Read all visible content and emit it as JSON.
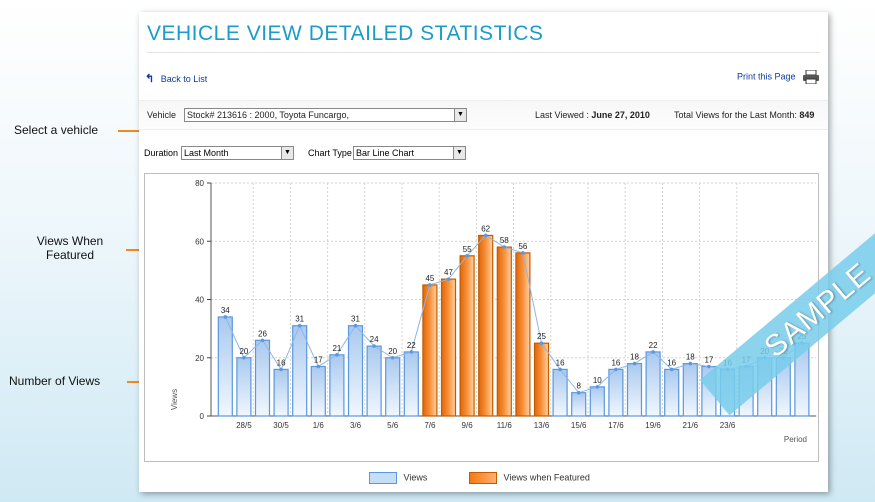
{
  "page": {
    "title": "VEHICLE VIEW DETAILED STATISTICS"
  },
  "nav": {
    "back_label": "Back to List",
    "print_label": "Print this Page"
  },
  "vehicle": {
    "label": "Vehicle",
    "selected": "Stock# 213616 : 2000, Toyota Funcargo,",
    "last_viewed_label": "Last Viewed :",
    "last_viewed_value": "June 27, 2010",
    "total_views_label": "Total Views for the Last Month:",
    "total_views_value": "849"
  },
  "filters": {
    "duration_label": "Duration",
    "duration_value": "Last Month",
    "chart_type_label": "Chart Type",
    "chart_type_value": "Bar Line Chart"
  },
  "annotations": {
    "select_vehicle": "Select a vehicle",
    "views_when_featured": "Views When Featured",
    "number_of_views": "Number of Views"
  },
  "watermark": "SAMPLE",
  "colors": {
    "views": "#c6ddf6",
    "views_border": "#5a98df",
    "featured": "#f47a12",
    "annotation_line": "#f08a20",
    "title": "#1a9cc9"
  },
  "chart_data": {
    "type": "bar",
    "ylabel": "Views",
    "xlabel": "Period",
    "ylim": [
      0,
      80
    ],
    "yticks": [
      0,
      20,
      40,
      60,
      80
    ],
    "grid": true,
    "legend_position": "bottom",
    "series_names": [
      "Views",
      "Views when Featured"
    ],
    "values": [
      34,
      20,
      26,
      16,
      31,
      17,
      21,
      31,
      24,
      20,
      22,
      45,
      47,
      55,
      62,
      58,
      56,
      25,
      16,
      8,
      10,
      16,
      18,
      22,
      16,
      18,
      17,
      16,
      17,
      20,
      20,
      25
    ],
    "featured": [
      false,
      false,
      false,
      false,
      false,
      false,
      false,
      false,
      false,
      false,
      false,
      true,
      true,
      true,
      true,
      true,
      true,
      true,
      false,
      false,
      false,
      false,
      false,
      false,
      false,
      false,
      false,
      false,
      false,
      false,
      false,
      false
    ],
    "tick_labels": [
      "28/5",
      "30/5",
      "1/6",
      "3/6",
      "5/6",
      "7/6",
      "9/6",
      "11/6",
      "13/6",
      "15/6",
      "17/6",
      "19/6",
      "21/6",
      "23/6"
    ],
    "tick_label_bar_index": [
      1,
      3,
      5,
      7,
      9,
      11,
      13,
      15,
      17,
      19,
      21,
      23,
      25,
      27
    ]
  }
}
